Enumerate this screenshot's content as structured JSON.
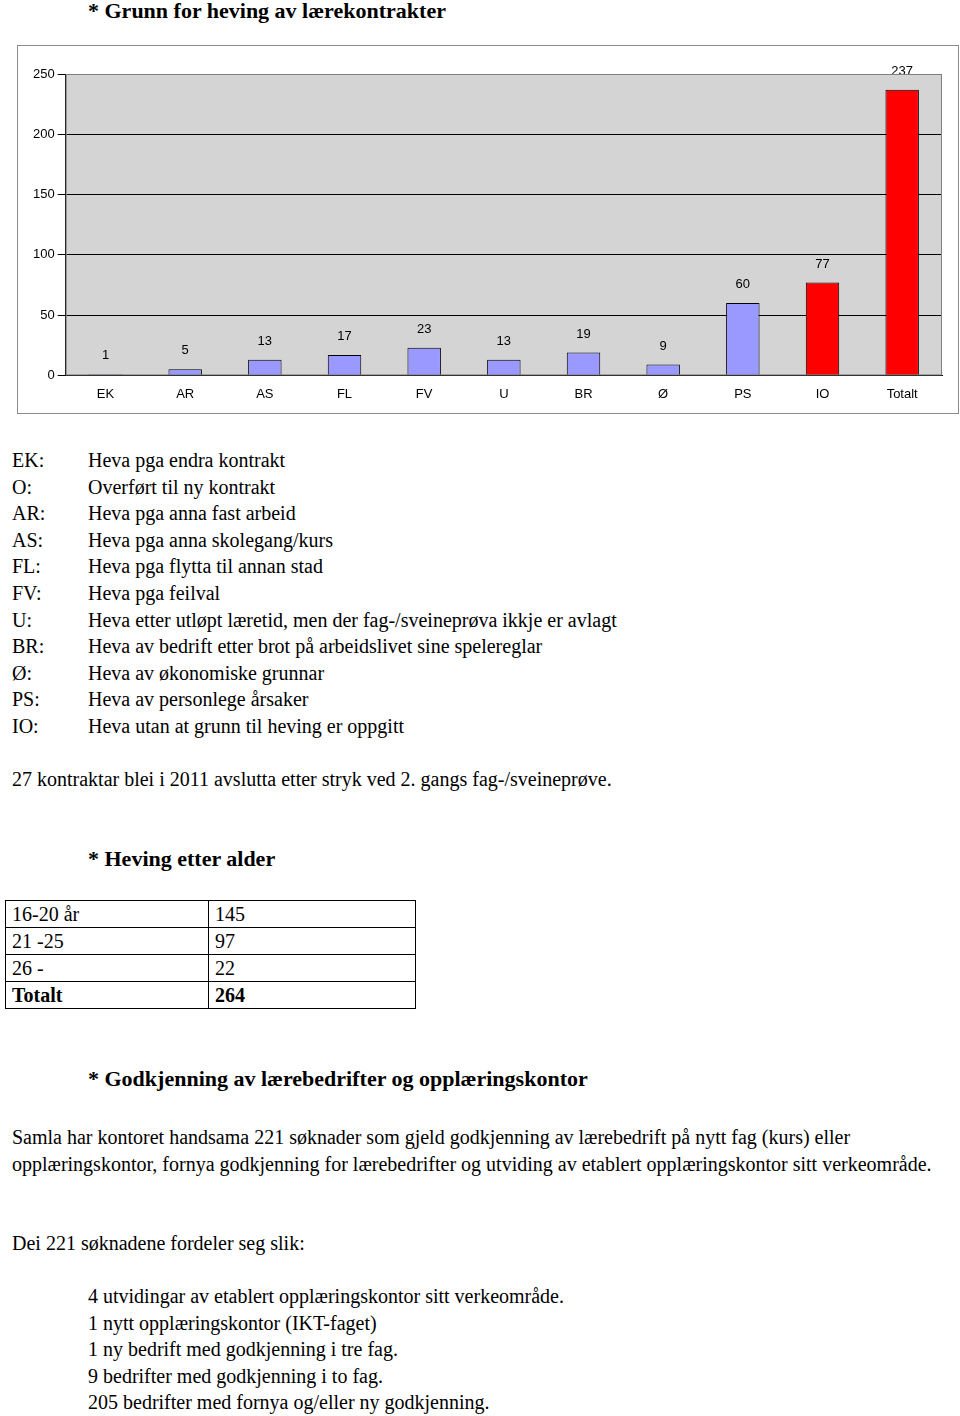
{
  "heading1": "* Grunn for heving av lærekontrakter",
  "chart_data": {
    "type": "bar",
    "categories": [
      "EK",
      "AR",
      "AS",
      "FL",
      "FV",
      "U",
      "BR",
      "Ø",
      "PS",
      "IO",
      "Totalt"
    ],
    "values": [
      1,
      5,
      13,
      17,
      23,
      13,
      19,
      9,
      60,
      77,
      237
    ],
    "colors": [
      "#9999ff",
      "#9999ff",
      "#9999ff",
      "#9999ff",
      "#9999ff",
      "#9999ff",
      "#9999ff",
      "#9999ff",
      "#9999ff",
      "#ff0000",
      "#ff0000"
    ],
    "ylim": [
      0,
      250
    ],
    "yticks": [
      0,
      50,
      100,
      150,
      200,
      250
    ],
    "grid": true,
    "data_labels": true
  },
  "abbreviations": [
    {
      "code": "EK:",
      "text": "Heva pga endra kontrakt"
    },
    {
      "code": "O:",
      "text": "Overført til ny kontrakt"
    },
    {
      "code": "AR:",
      "text": "Heva pga anna fast arbeid"
    },
    {
      "code": "AS:",
      "text": "Heva pga anna skolegang/kurs"
    },
    {
      "code": "FL:",
      "text": "Heva pga flytta til annan stad"
    },
    {
      "code": "FV:",
      "text": "Heva pga feilval"
    },
    {
      "code": "U:",
      "text": "Heva etter utløpt læretid, men der fag-/sveineprøva ikkje er avlagt"
    },
    {
      "code": "BR:",
      "text": "Heva av bedrift etter brot på arbeidslivet sine spelereglar"
    },
    {
      "code": "Ø:",
      "text": "Heva av økonomiske grunnar"
    },
    {
      "code": "PS:",
      "text": "Heva av personlege årsaker"
    },
    {
      "code": "IO:",
      "text": "Heva utan at grunn til heving er oppgitt"
    }
  ],
  "note": "27 kontraktar blei i 2011 avslutta etter stryk ved 2. gangs fag-/sveineprøve.",
  "heading2": "* Heving etter alder",
  "table": {
    "rows": [
      [
        "16-20 år",
        145
      ],
      [
        "21 -25",
        97
      ],
      [
        "26 -",
        22
      ],
      [
        "Totalt",
        264
      ]
    ]
  },
  "heading3": "* Godkjenning av lærebedrifter og opplæringskontor",
  "paragraph1": "Samla har kontoret handsama 221 søknader som gjeld godkjenning av lærebedrift på nytt fag (kurs) eller opplæringskontor, fornya godkjenning for lærebedrifter og utviding av etablert opplæringskontor sitt verkeområde.",
  "paragraph2": "Dei 221 søknadene fordeler seg slik:",
  "list": [
    "4 utvidingar av etablert opplæringskontor sitt verkeområde.",
    "1 nytt opplæringskontor (IKT-faget)",
    "1 ny bedrift med godkjenning i tre fag.",
    "9 bedrifter med godkjenning i to fag.",
    "205 bedrifter med fornya og/eller ny godkjenning."
  ]
}
